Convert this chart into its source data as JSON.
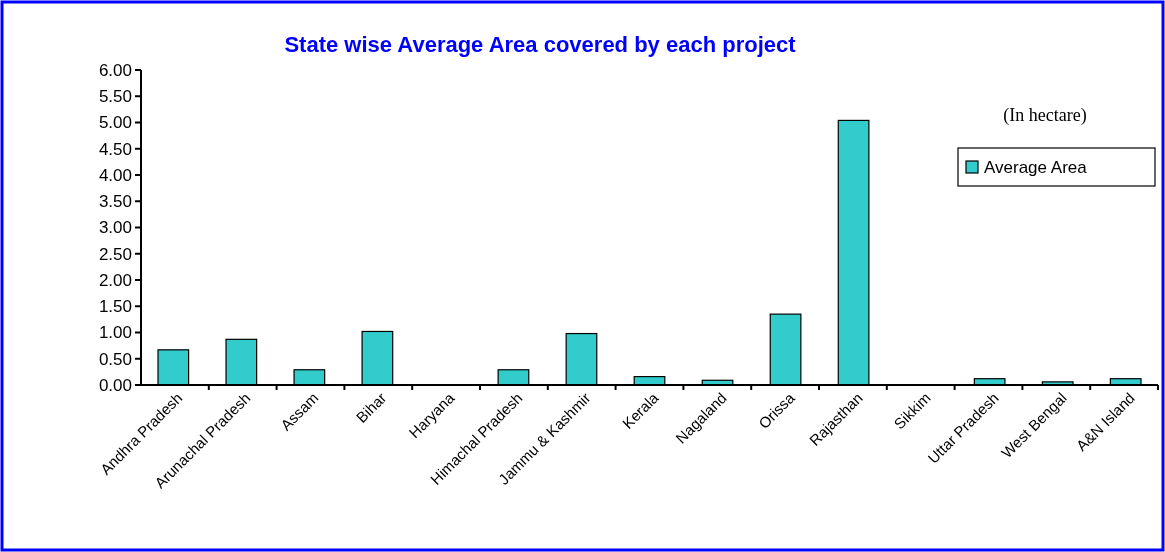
{
  "chart_data": {
    "type": "bar",
    "title": "State wise Average Area covered by each project",
    "annotations": [
      "(In hectare)"
    ],
    "categories": [
      "Andhra Pradesh",
      "Arunachal Pradesh",
      "Assam",
      "Bihar",
      "Haryana",
      "Himachal Pradesh",
      "Jammu & Kashmir",
      "Kerala",
      "Nagaland",
      "Orissa",
      "Rajasthan",
      "Sikkim",
      "Uttar Pradesh",
      "West Bengal",
      "A&N Island"
    ],
    "series": [
      {
        "name": "Average Area",
        "color": "#33cccc",
        "values": [
          0.67,
          0.87,
          0.29,
          1.02,
          0,
          0.29,
          0.98,
          0.16,
          0.09,
          1.35,
          5.04,
          0,
          0.12,
          0.06,
          0.12
        ]
      }
    ],
    "ylim": [
      0,
      6
    ],
    "yticks": [
      {
        "value": 0,
        "label": "0.00"
      },
      {
        "value": 0.5,
        "label": "0.50"
      },
      {
        "value": 1,
        "label": "1.00"
      },
      {
        "value": 1.5,
        "label": "1.50"
      },
      {
        "value": 2,
        "label": "2.00"
      },
      {
        "value": 2.5,
        "label": "2.50"
      },
      {
        "value": 3,
        "label": "3.00"
      },
      {
        "value": 3.5,
        "label": "3.50"
      },
      {
        "value": 4,
        "label": "4.00"
      },
      {
        "value": 4.5,
        "label": "4.50"
      },
      {
        "value": 5,
        "label": "5.00"
      },
      {
        "value": 5.5,
        "label": "5.50"
      },
      {
        "value": 6,
        "label": "6.00"
      }
    ],
    "legend": "top right"
  }
}
